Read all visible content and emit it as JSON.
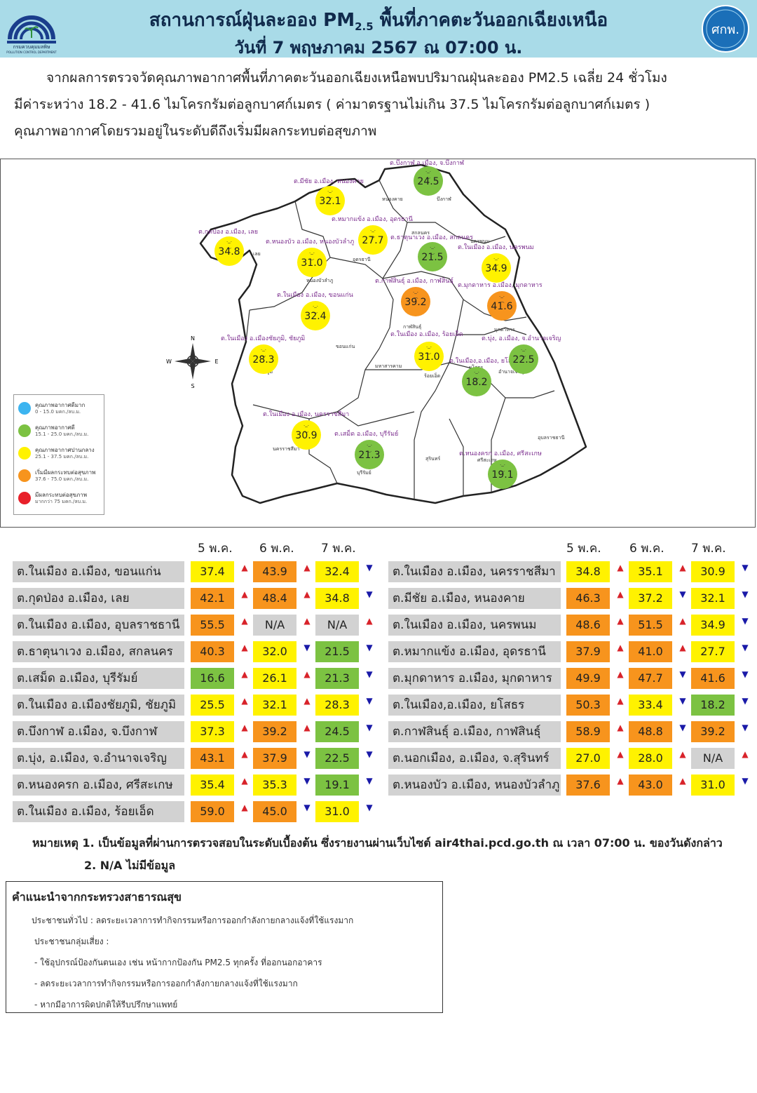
{
  "header": {
    "title_main": "สถานการณ์ฝุ่นละออง PM",
    "title_sub": "2.5",
    "title_rest": "พื้นที่ภาคตะวันออกเฉียงเหนือ",
    "date_line": "วันที่ 7 พฤษภาคม 2567 ณ 07:00 น.",
    "logo_left_text": "กรมควบคุมมลพิษ",
    "logo_left_en": "POLLUTION CONTROL DEPARTMENT",
    "logo_right_text": "ศกพ."
  },
  "intro": {
    "line1": "จากผลการตรวจวัดคุณภาพอากาศพื้นที่ภาคตะวันออกเฉียงเหนือพบปริมาณฝุ่นละออง PM2.5 เฉลี่ย 24 ชั่วโมง",
    "line2": "มีค่าระหว่าง 18.2 - 41.6 ไมโครกรัมต่อลูกบาศก์เมตร ( ค่ามาตรฐานไม่เกิน 37.5 ไมโครกรัมต่อลูกบาศก์เมตร )",
    "line3": "คุณภาพอากาศโดยรวมอยู่ในระดับดีถึงเริ่มมีผลกระทบต่อสุขภาพ"
  },
  "colors": {
    "excellent": "#3cb4f0",
    "good": "#7cc242",
    "moderate": "#fff200",
    "unhealthy_sensitive": "#f7941d",
    "unhealthy": "#e8202a",
    "name_bg": "#d2d2d2"
  },
  "legend": [
    {
      "title": "คุณภาพอากาศดีมาก",
      "range": "0 - 15.0 มคก./ลบ.ม.",
      "color": "#3cb4f0"
    },
    {
      "title": "คุณภาพอากาศดี",
      "range": "15.1 - 25.0 มคก./ลบ.ม.",
      "color": "#7cc242"
    },
    {
      "title": "คุณภาพอากาศปานกลาง",
      "range": "25.1 - 37.5 มคก./ลบ.ม.",
      "color": "#fff200"
    },
    {
      "title": "เริ่มมีผลกระทบต่อสุขภาพ",
      "range": "37.6 - 75.0 มคก./ลบ.ม.",
      "color": "#f7941d"
    },
    {
      "title": "มีผลกระทบต่อสุขภาพ",
      "range": "มากกว่า 75 มคก./ลบ.ม.",
      "color": "#e8202a"
    }
  ],
  "compass": {
    "n": "N",
    "s": "S",
    "e": "E",
    "w": "W"
  },
  "map_points": [
    {
      "label": "ต.บึงกาฬ อ.เมือง, จ.บึงกาฬ",
      "value": "24.5",
      "color": "#7cc242",
      "face": "._.\n‿"
    },
    {
      "label": "ต.มีชัย อ.เมือง, หนองคาย",
      "value": "32.1",
      "color": "#fff200",
      "face": "._.\n‿"
    },
    {
      "label": "ต.หมากแข้ง อ.เมือง, อุดรธานี",
      "value": "27.7",
      "color": "#fff200",
      "face": "._.\n‿"
    },
    {
      "label": "ต.ธาตุนาเวง อ.เมือง, สกลนคร",
      "value": "21.5",
      "color": "#7cc242",
      "face": "._.\n‿"
    },
    {
      "label": "ต.ในเมือง อ.เมือง, นครพนม",
      "value": "34.9",
      "color": "#fff200",
      "face": "._.\n‿"
    },
    {
      "label": "ต.กุดป่อง อ.เมือง, เลย",
      "value": "34.8",
      "color": "#fff200",
      "face": "._.\n‿"
    },
    {
      "label": "ต.หนองบัว อ.เมือง, หนองบัวลำภู",
      "value": "31.0",
      "color": "#fff200",
      "face": "._.\n‿"
    },
    {
      "label": "ต.กาฬสินธุ์ อ.เมือง, กาฬสินธุ์",
      "value": "39.2",
      "color": "#f7941d",
      "face": "._.\n︵"
    },
    {
      "label": "ต.มุกดาหาร อ.เมือง, มุกดาหาร",
      "value": "41.6",
      "color": "#f7941d",
      "face": "._.\n︵"
    },
    {
      "label": "ต.ในเมือง อ.เมือง, ขอนแก่น",
      "value": "32.4",
      "color": "#fff200",
      "face": "._.\n‿"
    },
    {
      "label": "ต.ในเมือง อ.เมืองชัยภูมิ, ชัยภูมิ",
      "value": "28.3",
      "color": "#fff200",
      "face": "._.\n‿"
    },
    {
      "label": "ต.ในเมือง อ.เมือง, ร้อยเอ็ด",
      "value": "31.0",
      "color": "#fff200",
      "face": "._.\n‿"
    },
    {
      "label": "ต.บุ่ง, อ.เมือง, จ.อำนาจเจริญ",
      "value": "22.5",
      "color": "#7cc242",
      "face": "._.\n‿"
    },
    {
      "label": "ต.ในเมือง,อ.เมือง, ยโสธร",
      "value": "18.2",
      "color": "#7cc242",
      "face": "._.\n‿"
    },
    {
      "label": "ต.ในเมือง อ.เมือง, นครราชสีมา",
      "value": "30.9",
      "color": "#fff200",
      "face": "._.\n‿"
    },
    {
      "label": "ต.เสม็ด อ.เมือง, บุรีรัมย์",
      "value": "21.3",
      "color": "#7cc242",
      "face": "._.\n‿"
    },
    {
      "label": "ต.หนองครก อ.เมือง, ศรีสะเกษ",
      "value": "19.1",
      "color": "#7cc242",
      "face": "._.\n‿"
    }
  ],
  "region_labels": [
    "หนองคาย",
    "บึงกาฬ",
    "สกลนคร",
    "นครพนม",
    "อุดรธานี",
    "เลย",
    "หนองบัวลำภู",
    "กาฬสินธุ์",
    "มุกดาหาร",
    "ขอนแก่น",
    "ชัยภูมิ",
    "มหาสารคาม",
    "ร้อยเอ็ด",
    "ยโสธร",
    "อำนาจเจริญ",
    "นครราชสีมา",
    "บุรีรัมย์",
    "สุรินทร์",
    "ศรีสะเกษ",
    "อุบลราชธานี"
  ],
  "table": {
    "day_headers": [
      "5 พ.ค.",
      "6 พ.ค.",
      "7 พ.ค."
    ],
    "left": [
      {
        "name": "ต.ในเมือง อ.เมือง, ขอนแก่น",
        "values": [
          "37.4",
          "43.9",
          "32.4"
        ],
        "colors": [
          "#fff200",
          "#f7941d",
          "#fff200"
        ],
        "trends": [
          "up",
          "up",
          "down"
        ]
      },
      {
        "name": "ต.กุดป่อง อ.เมือง, เลย",
        "values": [
          "42.1",
          "48.4",
          "34.8"
        ],
        "colors": [
          "#f7941d",
          "#f7941d",
          "#fff200"
        ],
        "trends": [
          "up",
          "up",
          "down"
        ]
      },
      {
        "name": "ต.ในเมือง อ.เมือง, อุบลราชธานี",
        "values": [
          "55.5",
          "N/A",
          "N/A"
        ],
        "colors": [
          "#f7941d",
          "#d2d2d2",
          "#d2d2d2"
        ],
        "trends": [
          "up",
          "up",
          "up"
        ]
      },
      {
        "name": "ต.ธาตุนาเวง อ.เมือง, สกลนคร",
        "values": [
          "40.3",
          "32.0",
          "21.5"
        ],
        "colors": [
          "#f7941d",
          "#fff200",
          "#7cc242"
        ],
        "trends": [
          "up",
          "down",
          "down"
        ]
      },
      {
        "name": "ต.เสม็ด อ.เมือง, บุรีรัมย์",
        "values": [
          "16.6",
          "26.1",
          "21.3"
        ],
        "colors": [
          "#7cc242",
          "#fff200",
          "#7cc242"
        ],
        "trends": [
          "up",
          "up",
          "down"
        ]
      },
      {
        "name": "ต.ในเมือง อ.เมืองชัยภูมิ, ชัยภูมิ",
        "values": [
          "25.5",
          "32.1",
          "28.3"
        ],
        "colors": [
          "#fff200",
          "#fff200",
          "#fff200"
        ],
        "trends": [
          "up",
          "up",
          "down"
        ]
      },
      {
        "name": "ต.บึงกาฬ อ.เมือง, จ.บึงกาฬ",
        "values": [
          "37.3",
          "39.2",
          "24.5"
        ],
        "colors": [
          "#fff200",
          "#f7941d",
          "#7cc242"
        ],
        "trends": [
          "up",
          "up",
          "down"
        ]
      },
      {
        "name": "ต.บุ่ง, อ.เมือง, จ.อำนาจเจริญ",
        "values": [
          "43.1",
          "37.9",
          "22.5"
        ],
        "colors": [
          "#f7941d",
          "#f7941d",
          "#7cc242"
        ],
        "trends": [
          "up",
          "down",
          "down"
        ]
      },
      {
        "name": "ต.หนองครก อ.เมือง, ศรีสะเกษ",
        "values": [
          "35.4",
          "35.3",
          "19.1"
        ],
        "colors": [
          "#fff200",
          "#fff200",
          "#7cc242"
        ],
        "trends": [
          "up",
          "down",
          "down"
        ]
      },
      {
        "name": "ต.ในเมือง อ.เมือง, ร้อยเอ็ด",
        "values": [
          "59.0",
          "45.0",
          "31.0"
        ],
        "colors": [
          "#f7941d",
          "#f7941d",
          "#fff200"
        ],
        "trends": [
          "up",
          "down",
          "down"
        ]
      }
    ],
    "right": [
      {
        "name": "ต.ในเมือง อ.เมือง, นครราชสีมา",
        "values": [
          "34.8",
          "35.1",
          "30.9"
        ],
        "colors": [
          "#fff200",
          "#fff200",
          "#fff200"
        ],
        "trends": [
          "up",
          "up",
          "down"
        ]
      },
      {
        "name": "ต.มีชัย อ.เมือง, หนองคาย",
        "values": [
          "46.3",
          "37.2",
          "32.1"
        ],
        "colors": [
          "#f7941d",
          "#fff200",
          "#fff200"
        ],
        "trends": [
          "up",
          "down",
          "down"
        ]
      },
      {
        "name": "ต.ในเมือง อ.เมือง, นครพนม",
        "values": [
          "48.6",
          "51.5",
          "34.9"
        ],
        "colors": [
          "#f7941d",
          "#f7941d",
          "#fff200"
        ],
        "trends": [
          "up",
          "up",
          "down"
        ]
      },
      {
        "name": "ต.หมากแข้ง อ.เมือง, อุดรธานี",
        "values": [
          "37.9",
          "41.0",
          "27.7"
        ],
        "colors": [
          "#f7941d",
          "#f7941d",
          "#fff200"
        ],
        "trends": [
          "up",
          "up",
          "down"
        ]
      },
      {
        "name": "ต.มุกดาหาร อ.เมือง, มุกดาหาร",
        "values": [
          "49.9",
          "47.7",
          "41.6"
        ],
        "colors": [
          "#f7941d",
          "#f7941d",
          "#f7941d"
        ],
        "trends": [
          "up",
          "down",
          "down"
        ]
      },
      {
        "name": "ต.ในเมือง,อ.เมือง, ยโสธร",
        "values": [
          "50.3",
          "33.4",
          "18.2"
        ],
        "colors": [
          "#f7941d",
          "#fff200",
          "#7cc242"
        ],
        "trends": [
          "up",
          "down",
          "down"
        ]
      },
      {
        "name": "ต.กาฬสินธุ์ อ.เมือง, กาฬสินธุ์",
        "values": [
          "58.9",
          "48.8",
          "39.2"
        ],
        "colors": [
          "#f7941d",
          "#f7941d",
          "#f7941d"
        ],
        "trends": [
          "up",
          "down",
          "down"
        ]
      },
      {
        "name": "ต.นอกเมือง, อ.เมือง, จ.สุรินทร์",
        "values": [
          "27.0",
          "28.0",
          "N/A"
        ],
        "colors": [
          "#fff200",
          "#fff200",
          "#d2d2d2"
        ],
        "trends": [
          "up",
          "up",
          "up"
        ]
      },
      {
        "name": "ต.หนองบัว อ.เมือง, หนองบัวลำภู",
        "values": [
          "37.6",
          "43.0",
          "31.0"
        ],
        "colors": [
          "#f7941d",
          "#f7941d",
          "#fff200"
        ],
        "trends": [
          "up",
          "up",
          "down"
        ]
      }
    ]
  },
  "notes": {
    "note1": "หมายเหตุ 1. เป็นข้อมูลที่ผ่านการตรวจสอบในระดับเบื้องต้น ซึ่งรายงานผ่านเว็บไซต์ air4thai.pcd.go.th ณ เวลา 07:00 น. ของวันดังกล่าว",
    "note2": "2. N/A ไม่มีข้อมูล"
  },
  "advice": {
    "title": "คำแนะนำจากกระทรวงสาธารณสุข",
    "lines": [
      "ประชาชนทั่วไป : ลดระยะเวลาการทำกิจกรรมหรือการออกกำลังกายกลางแจ้งที่ใช้แรงมาก",
      "ประชาชนกลุ่มเสี่ยง :",
      "- ใช้อุปกรณ์ป้องกันตนเอง เช่น หน้ากากป้องกัน PM2.5 ทุกครั้ง  ที่ออกนอกอาคาร",
      "- ลดระยะเวลาการทำกิจกรรมหรือการออกกำลังกายกลางแจ้งที่ใช้แรงมาก",
      "- หากมีอาการผิดปกติให้รีบปรึกษาแพทย์"
    ]
  }
}
